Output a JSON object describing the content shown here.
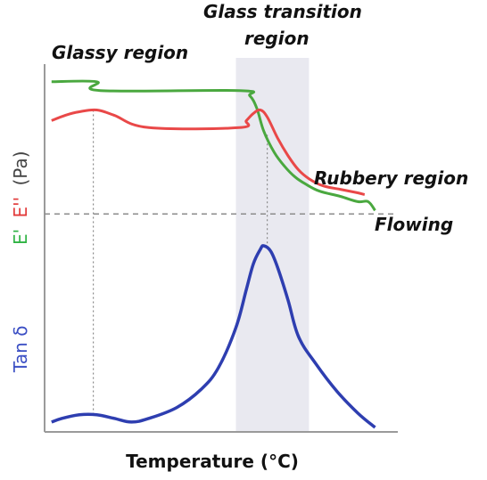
{
  "chart_data": {
    "type": "line",
    "xlabel": "Temperature (°C)",
    "ylabel_top": {
      "segments": [
        {
          "text": "E'",
          "color": "#2fb344"
        },
        {
          "text": "E''",
          "color": "#e23a3a"
        },
        {
          "text": "(Pa)",
          "color": "#444444"
        }
      ]
    },
    "ylabel_bottom": {
      "text": "Tan δ",
      "color": "#3b4fc4"
    },
    "xlim": [
      0,
      100
    ],
    "ylim_top": [
      0,
      100
    ],
    "ylim_bottom": [
      0,
      100
    ],
    "grid": false,
    "annotations": [
      {
        "text": "Glassy region"
      },
      {
        "text": "Glass transition"
      },
      {
        "text": "region"
      },
      {
        "text": "Rubbery region"
      },
      {
        "text": "Flowing"
      }
    ],
    "transition_band": [
      55,
      76
    ],
    "glass_transition_x": 64,
    "glassy_marker_x": 14,
    "separator_y_top": 15,
    "series": [
      {
        "name": "E'",
        "color": "#4aa83f",
        "panel": "top",
        "x": [
          2,
          15,
          16,
          56,
          59,
          61,
          63,
          66,
          69,
          72,
          75,
          79,
          85,
          90,
          93,
          95
        ],
        "y": [
          90,
          90,
          85,
          85,
          82,
          75,
          62,
          50,
          42,
          36,
          32,
          28,
          25,
          22,
          22,
          17
        ]
      },
      {
        "name": "E''",
        "color": "#e94848",
        "panel": "top",
        "x": [
          2,
          6,
          10,
          15,
          20,
          30,
          56,
          58,
          60,
          62,
          64,
          67,
          70,
          73,
          76,
          80,
          85,
          90,
          92
        ],
        "y": [
          68,
          71,
          73,
          74,
          71,
          64,
          64,
          68,
          72,
          74,
          70,
          58,
          48,
          40,
          35,
          31,
          29,
          27,
          26
        ]
      },
      {
        "name": "Tan δ",
        "color": "#2e3eb0",
        "panel": "bottom",
        "x": [
          2,
          5,
          10,
          15,
          20,
          25,
          30,
          38,
          45,
          50,
          55,
          58,
          60,
          62,
          63,
          65,
          67,
          70,
          73,
          78,
          84,
          90,
          95
        ],
        "y": [
          3,
          5,
          7,
          7,
          5,
          3,
          5,
          11,
          21,
          33,
          55,
          76,
          90,
          98,
          100,
          97,
          88,
          70,
          50,
          35,
          20,
          8,
          0
        ]
      }
    ]
  }
}
